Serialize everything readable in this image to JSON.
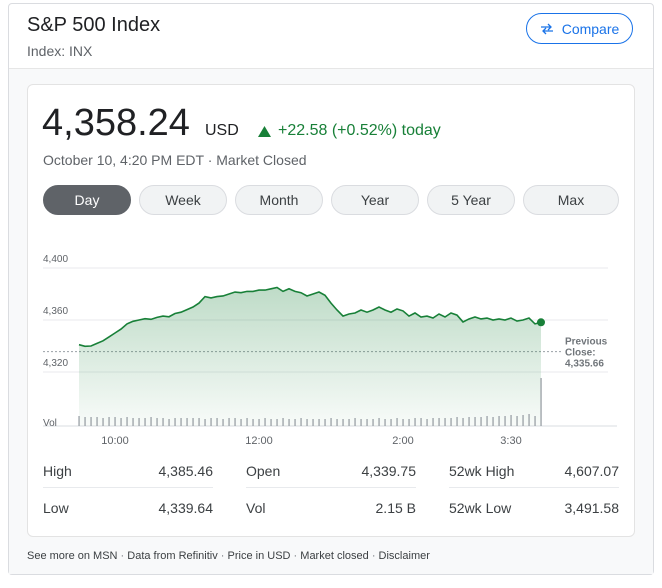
{
  "header": {
    "title": "S&P 500 Index",
    "subtitle": "Index: INX",
    "compare": "Compare"
  },
  "quote": {
    "price": "4,358.24",
    "currency": "USD",
    "change": "+22.58 (+0.52%) today",
    "timestamp": "October 10, 4:20 PM EDT · Market Closed"
  },
  "tabs": [
    "Day",
    "Week",
    "Month",
    "Year",
    "5 Year",
    "Max"
  ],
  "active_tab": 0,
  "chart_data": {
    "type": "line",
    "x": [
      570,
      575,
      580,
      585,
      590,
      595,
      600,
      605,
      610,
      615,
      620,
      625,
      630,
      635,
      640,
      645,
      650,
      655,
      660,
      665,
      670,
      675,
      680,
      685,
      690,
      695,
      700,
      705,
      710,
      715,
      720,
      725,
      730,
      735,
      740,
      745,
      750,
      755,
      760,
      765,
      770,
      775,
      780,
      785,
      790,
      795,
      800,
      805,
      810,
      815,
      820,
      825,
      830,
      835,
      840,
      845,
      850,
      855,
      860,
      865,
      870,
      875,
      880,
      885,
      890,
      895,
      900,
      905,
      910,
      915,
      920,
      925,
      930,
      935,
      940,
      945,
      950,
      955
    ],
    "series": [
      {
        "color": "#188038",
        "values": [
          4341,
          4339.8,
          4340,
          4342,
          4344,
          4347,
          4350,
          4353,
          4357,
          4359,
          4360,
          4361,
          4360.5,
          4362,
          4363,
          4362.5,
          4365,
          4366,
          4368,
          4370,
          4373,
          4378,
          4377,
          4378,
          4378.5,
          4380,
          4381.5,
          4381,
          4382,
          4382,
          4383,
          4383,
          4384,
          4385,
          4382,
          4384,
          4382,
          4381,
          4378.5,
          4380,
          4381.5,
          4379,
          4373,
          4367.7,
          4363,
          4364.6,
          4365.4,
          4367.7,
          4366,
          4367.7,
          4370,
          4367.7,
          4366,
          4368.5,
          4367,
          4363,
          4365.4,
          4362.3,
          4363,
          4361.5,
          4364.6,
          4362.3,
          4365.4,
          4363.8,
          4358.5,
          4360.8,
          4362.3,
          4360.8,
          4361.5,
          4360,
          4360.8,
          4360,
          4361.5,
          4359.2,
          4360,
          4361.5,
          4357,
          4358.24
        ]
      },
      {
        "name": "Vol",
        "type": "bar",
        "axis": "y2",
        "color": "#9aa0a6",
        "values": [
          10,
          9,
          9,
          9,
          8,
          9,
          9,
          8,
          9,
          8,
          8,
          8,
          9,
          8,
          8,
          7,
          8,
          8,
          8,
          8,
          8,
          7,
          8,
          8,
          7,
          8,
          8,
          7,
          8,
          7,
          7,
          8,
          7,
          7,
          8,
          7,
          7,
          8,
          7,
          7,
          7,
          7,
          8,
          7,
          7,
          7,
          8,
          7,
          7,
          7,
          8,
          7,
          7,
          8,
          7,
          7,
          8,
          8,
          7,
          8,
          8,
          8,
          8,
          9,
          8,
          9,
          9,
          9,
          10,
          9,
          10,
          10,
          11,
          10,
          11,
          12,
          10,
          48
        ]
      }
    ],
    "xlim": [
      570,
      960
    ],
    "xticks": [
      {
        "value": 600,
        "label": "10:00"
      },
      {
        "value": 720,
        "label": "12:00"
      },
      {
        "value": 840,
        "label": "2:00"
      },
      {
        "value": 930,
        "label": "3:30"
      }
    ],
    "ylim": [
      4280,
      4400
    ],
    "yticks": [
      {
        "value": 4320,
        "label": "4,320"
      },
      {
        "value": 4360,
        "label": "4,360"
      },
      {
        "value": 4400,
        "label": "4,400"
      }
    ],
    "y2lim": [
      0,
      50
    ],
    "grid": true,
    "previous_close": {
      "label": "Previous Close:",
      "value": 4335.66,
      "value_label": "4,335.66"
    }
  },
  "stats": {
    "rows": [
      [
        [
          "High",
          "4,385.46"
        ],
        [
          "Open",
          "4,339.75"
        ],
        [
          "52wk High",
          "4,607.07"
        ]
      ],
      [
        [
          "Low",
          "4,339.64"
        ],
        [
          "Vol",
          "2.15 B"
        ],
        [
          "52wk Low",
          "3,491.58"
        ]
      ]
    ]
  },
  "footer": [
    "See more on MSN",
    "Data from Refinitiv",
    "Price in USD",
    "Market closed",
    "Disclaimer"
  ]
}
